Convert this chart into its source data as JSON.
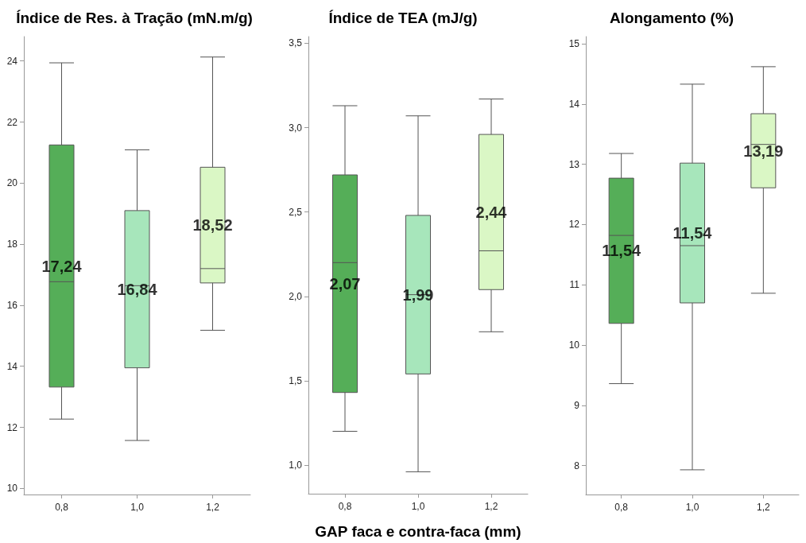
{
  "chart_data": [
    {
      "type": "box",
      "title": "Índice de Res. à Tração (mN.m/g)",
      "categories": [
        "0,8",
        "1,0",
        "1,2"
      ],
      "colors": [
        "#55ae58",
        "#a7e6bb",
        "#daf7c5"
      ],
      "boxes": [
        {
          "low": 12.27,
          "q1": 13.32,
          "median": 16.77,
          "q3": 21.25,
          "high": 23.94
        },
        {
          "low": 11.57,
          "q1": 13.95,
          "median": 16.64,
          "q3": 19.1,
          "high": 21.09
        },
        {
          "low": 15.18,
          "q1": 16.73,
          "median": 17.2,
          "q3": 20.52,
          "high": 24.13
        }
      ],
      "value_labels": [
        "17,24",
        "16,84",
        "18,52"
      ],
      "ylim": [
        9.8,
        24.8
      ],
      "yticks": [
        10,
        12,
        14,
        16,
        18,
        20,
        22,
        24
      ],
      "grid": false
    },
    {
      "type": "box",
      "title": "Índice de TEA (mJ/g)",
      "xlabel": "GAP faca e contra-faca (mm)",
      "categories": [
        "0,8",
        "1,0",
        "1,2"
      ],
      "colors": [
        "#55ae58",
        "#a7e6bb",
        "#daf7c5"
      ],
      "boxes": [
        {
          "low": 1.2,
          "q1": 1.43,
          "median": 2.2,
          "q3": 2.72,
          "high": 3.13
        },
        {
          "low": 0.96,
          "q1": 1.54,
          "median": 2.01,
          "q3": 2.48,
          "high": 3.07
        },
        {
          "low": 1.79,
          "q1": 2.04,
          "median": 2.27,
          "q3": 2.96,
          "high": 3.17
        }
      ],
      "value_labels": [
        "2,07",
        "1,99",
        "2,44"
      ],
      "ylim": [
        0.83,
        3.54
      ],
      "yticks": [
        {
          "value": 1.0,
          "label": "1,0"
        },
        {
          "value": 1.5,
          "label": "1,5"
        },
        {
          "value": 2.0,
          "label": "2,0"
        },
        {
          "value": 2.5,
          "label": "2,5"
        },
        {
          "value": 3.0,
          "label": "3,0"
        },
        {
          "value": 3.5,
          "label": "3,5"
        }
      ],
      "grid": false
    },
    {
      "type": "box",
      "title": "Alongamento (%)",
      "categories": [
        "0,8",
        "1,0",
        "1,2"
      ],
      "colors": [
        "#55ae58",
        "#a7e6bb",
        "#daf7c5"
      ],
      "boxes": [
        {
          "low": 9.36,
          "q1": 10.36,
          "median": 11.82,
          "q3": 12.77,
          "high": 13.18
        },
        {
          "low": 7.93,
          "q1": 10.7,
          "median": 11.65,
          "q3": 13.02,
          "high": 14.33
        },
        {
          "low": 10.86,
          "q1": 12.61,
          "median": 13.33,
          "q3": 13.84,
          "high": 14.62
        }
      ],
      "value_labels": [
        "11,54",
        "11,54",
        "13,19"
      ],
      "ylim": [
        7.52,
        15.12
      ],
      "yticks": [
        8,
        9,
        10,
        11,
        12,
        13,
        14,
        15
      ],
      "grid": false
    }
  ]
}
